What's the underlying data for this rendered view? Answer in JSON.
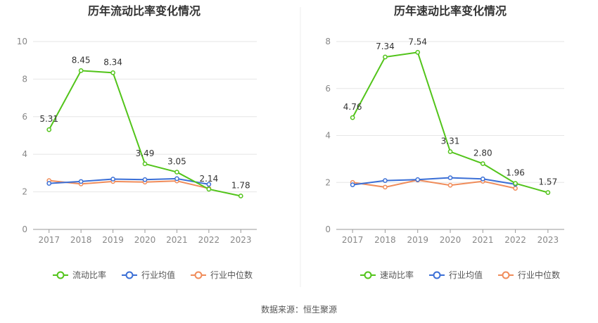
{
  "source": "数据来源：恒生聚源",
  "chart_data": [
    {
      "type": "line",
      "title": "历年流动比率变化情况",
      "categories": [
        "2017",
        "2018",
        "2019",
        "2020",
        "2021",
        "2022",
        "2023"
      ],
      "ylim": [
        0,
        10
      ],
      "yticks": [
        0,
        2,
        4,
        6,
        8,
        10
      ],
      "grid": true,
      "legend_position": "bottom",
      "series": [
        {
          "name": "流动比率",
          "color": "#52c41a",
          "labeled": true,
          "values": [
            5.31,
            8.45,
            8.34,
            3.49,
            3.05,
            2.14,
            1.78
          ],
          "labels": [
            "5.31",
            "8.45",
            "8.34",
            "3.49",
            "3.05",
            "2.14",
            "1.78"
          ]
        },
        {
          "name": "行业均值",
          "color": "#3b6fd6",
          "labeled": false,
          "values": [
            2.45,
            2.55,
            2.68,
            2.65,
            2.7,
            2.4,
            null
          ]
        },
        {
          "name": "行业中位数",
          "color": "#f08c5a",
          "labeled": false,
          "values": [
            2.6,
            2.42,
            2.55,
            2.52,
            2.58,
            2.18,
            null
          ]
        }
      ]
    },
    {
      "type": "line",
      "title": "历年速动比率变化情况",
      "categories": [
        "2017",
        "2018",
        "2019",
        "2020",
        "2021",
        "2022",
        "2023"
      ],
      "ylim": [
        0,
        8
      ],
      "yticks": [
        0,
        2,
        4,
        6,
        8
      ],
      "grid": true,
      "legend_position": "bottom",
      "series": [
        {
          "name": "速动比率",
          "color": "#52c41a",
          "labeled": true,
          "values": [
            4.76,
            7.34,
            7.54,
            3.31,
            2.8,
            1.96,
            1.57
          ],
          "labels": [
            "4.76",
            "7.34",
            "7.54",
            "3.31",
            "2.80",
            "1.96",
            "1.57"
          ]
        },
        {
          "name": "行业均值",
          "color": "#3b6fd6",
          "labeled": false,
          "values": [
            1.9,
            2.08,
            2.12,
            2.2,
            2.15,
            1.92,
            null
          ]
        },
        {
          "name": "行业中位数",
          "color": "#f08c5a",
          "labeled": false,
          "values": [
            2.0,
            1.8,
            2.1,
            1.88,
            2.05,
            1.75,
            null
          ]
        }
      ]
    }
  ]
}
